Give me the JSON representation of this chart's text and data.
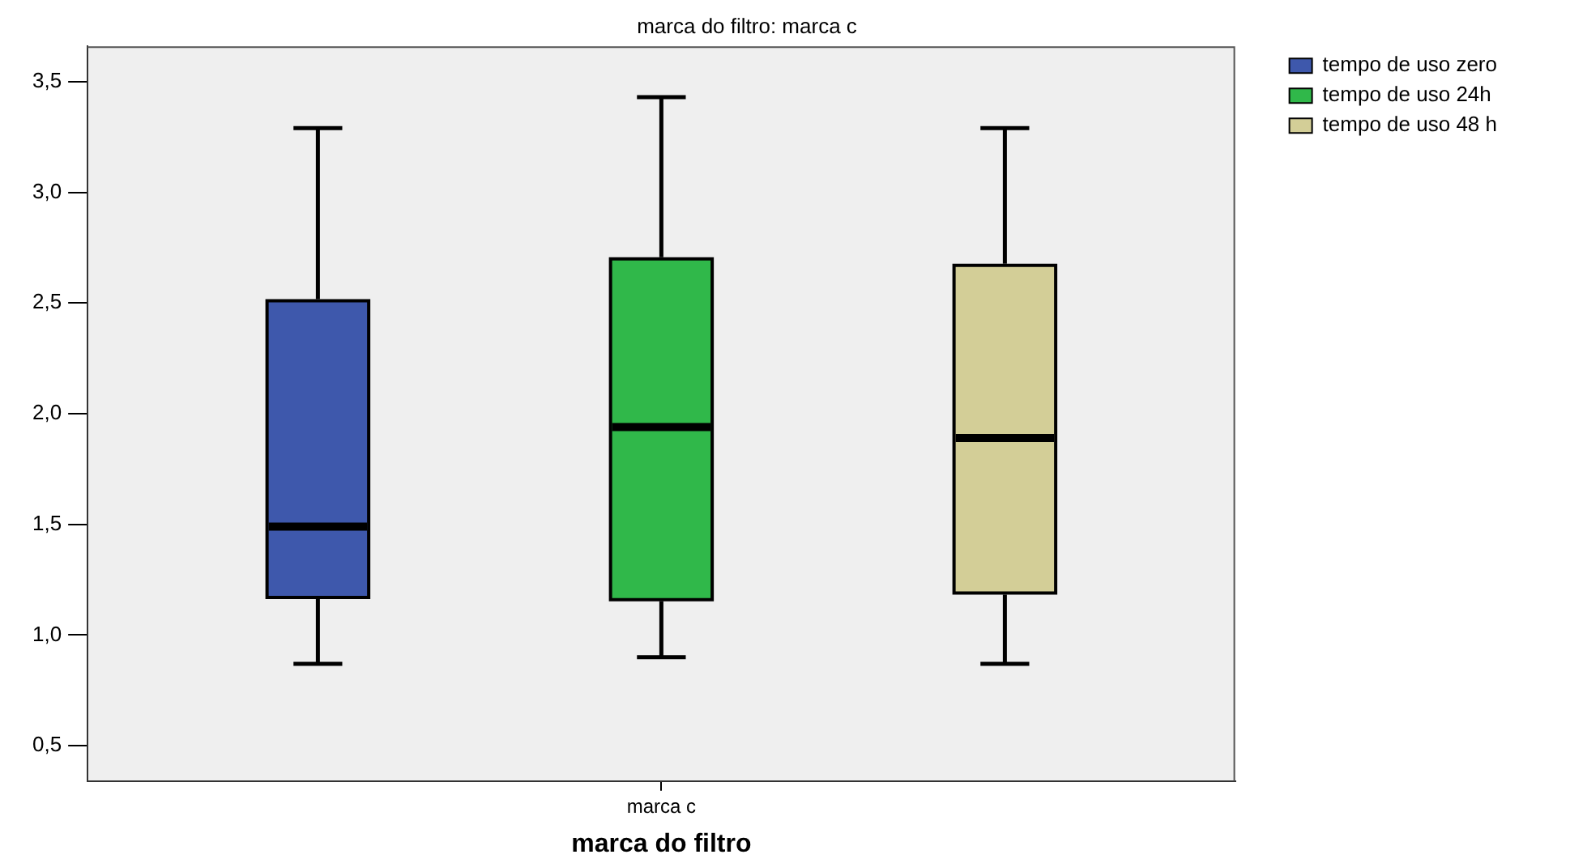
{
  "chart_data": {
    "type": "box",
    "title": "marca do filtro: marca c",
    "xlabel": "marca do filtro",
    "categories": [
      "marca c"
    ],
    "series": [
      {
        "name": "tempo de uso zero",
        "color": "#3e58ac",
        "boxes": [
          {
            "low": 0.87,
            "q1": 1.17,
            "median": 1.49,
            "q3": 2.51,
            "high": 3.29
          }
        ]
      },
      {
        "name": "tempo de uso 24h",
        "color": "#30b84a",
        "boxes": [
          {
            "low": 0.9,
            "q1": 1.16,
            "median": 1.94,
            "q3": 2.7,
            "high": 3.43
          }
        ]
      },
      {
        "name": "tempo de uso 48 h",
        "color": "#d3ce97",
        "boxes": [
          {
            "low": 0.87,
            "q1": 1.19,
            "median": 1.89,
            "q3": 2.67,
            "high": 3.29
          }
        ]
      }
    ],
    "ylim": [
      0.34,
      3.66
    ],
    "yticks": [
      {
        "value": 0.5,
        "label": "0,5"
      },
      {
        "value": 1.0,
        "label": "1,0"
      },
      {
        "value": 1.5,
        "label": "1,5"
      },
      {
        "value": 2.0,
        "label": "2,0"
      },
      {
        "value": 2.5,
        "label": "2,5"
      },
      {
        "value": 3.0,
        "label": "3,0"
      },
      {
        "value": 3.5,
        "label": "3,5"
      }
    ],
    "grid": false,
    "legend": "top right"
  }
}
